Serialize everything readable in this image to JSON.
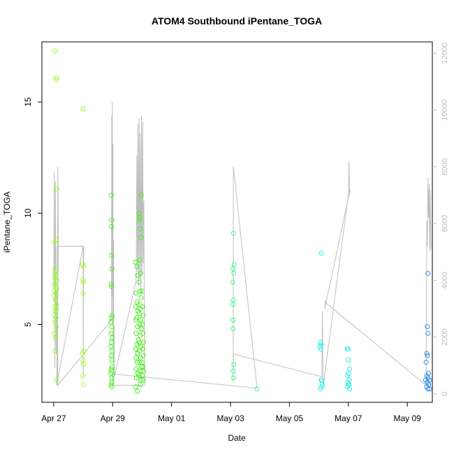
{
  "chart_data": {
    "type": "scatter",
    "title": "ATOM4 Southbound iPentane_TOGA",
    "xlabel": "Date",
    "ylabel": "iPentane_TOGA",
    "x_tick_labels": [
      "Apr 27",
      "Apr 29",
      "May 01",
      "May 03",
      "May 05",
      "May 07",
      "May 09"
    ],
    "x_ticks_day": [
      0,
      2,
      4,
      6,
      8,
      10,
      12
    ],
    "xlim_day": [
      -0.4,
      12.85
    ],
    "ylim": [
      1.5,
      17.7
    ],
    "y_ticks": [
      5,
      10,
      15
    ],
    "y_tick_labels": [
      "5",
      "10",
      "15"
    ],
    "y2lim": [
      -300,
      12400
    ],
    "y2_ticks": [
      0,
      2000,
      4000,
      6000,
      8000,
      10000,
      12000
    ],
    "y2_tick_labels": [
      "0",
      "2000",
      "4000",
      "6000",
      "8000",
      "10000",
      "12000"
    ],
    "colors": {
      "altitude_line": "#bebebe",
      "right_axis": "#bbbbbb",
      "frame": "#000000"
    },
    "series": [
      {
        "color": "#9bff2a",
        "points": [
          [
            0.04,
            17.3
          ],
          [
            0.1,
            16.1
          ],
          [
            0.08,
            16.0
          ],
          [
            0.1,
            11.1
          ],
          [
            0.08,
            8.8
          ],
          [
            0.02,
            8.7
          ],
          [
            0.05,
            7.5
          ],
          [
            0.03,
            7.3
          ],
          [
            0.08,
            7.2
          ],
          [
            0.04,
            7.1
          ],
          [
            0.1,
            7.0
          ],
          [
            0.02,
            6.8
          ],
          [
            0.06,
            6.7
          ],
          [
            0.1,
            6.6
          ],
          [
            0.04,
            6.5
          ],
          [
            0.08,
            6.4
          ],
          [
            0.0,
            6.3
          ],
          [
            0.06,
            6.1
          ],
          [
            0.1,
            5.9
          ],
          [
            0.03,
            5.8
          ],
          [
            0.09,
            5.7
          ],
          [
            0.05,
            5.6
          ],
          [
            0.02,
            5.4
          ],
          [
            0.08,
            5.3
          ],
          [
            0.04,
            5.1
          ],
          [
            0.1,
            4.9
          ],
          [
            0.02,
            4.6
          ],
          [
            0.06,
            4.4
          ],
          [
            0.03,
            3.8
          ],
          [
            0.1,
            2.5
          ],
          [
            1.0,
            14.7
          ],
          [
            0.98,
            7.7
          ],
          [
            1.02,
            7.6
          ],
          [
            0.99,
            7.0
          ],
          [
            1.01,
            6.9
          ],
          [
            1.0,
            6.4
          ],
          [
            1.02,
            3.8
          ],
          [
            0.98,
            3.7
          ],
          [
            1.0,
            3.4
          ],
          [
            1.02,
            3.2
          ],
          [
            1.0,
            2.7
          ],
          [
            1.01,
            2.3
          ]
        ]
      },
      {
        "color": "#48f01c",
        "points": [
          [
            1.96,
            10.8
          ],
          [
            1.97,
            9.7
          ],
          [
            1.96,
            9.4
          ],
          [
            1.97,
            8.1
          ],
          [
            1.98,
            7.5
          ],
          [
            1.95,
            6.8
          ],
          [
            1.97,
            6.7
          ],
          [
            1.98,
            5.4
          ],
          [
            1.96,
            5.3
          ],
          [
            1.94,
            5.1
          ],
          [
            1.97,
            4.9
          ],
          [
            1.95,
            4.6
          ],
          [
            1.98,
            4.4
          ],
          [
            1.96,
            4.2
          ],
          [
            1.94,
            4.0
          ],
          [
            1.97,
            3.8
          ],
          [
            1.95,
            3.6
          ],
          [
            1.96,
            3.4
          ],
          [
            1.98,
            3.1
          ],
          [
            1.95,
            3.0
          ],
          [
            1.97,
            2.9
          ],
          [
            1.94,
            2.8
          ],
          [
            1.96,
            2.6
          ],
          [
            1.98,
            2.4
          ],
          [
            1.95,
            2.3
          ],
          [
            1.97,
            2.2
          ],
          [
            2.78,
            7.8
          ],
          [
            2.82,
            7.6
          ],
          [
            2.85,
            7.2
          ],
          [
            2.8,
            6.4
          ],
          [
            2.83,
            6.0
          ],
          [
            2.78,
            5.8
          ],
          [
            2.86,
            5.6
          ],
          [
            2.82,
            5.3
          ],
          [
            2.79,
            5.2
          ],
          [
            2.84,
            4.9
          ],
          [
            2.8,
            4.6
          ],
          [
            2.87,
            4.3
          ],
          [
            2.82,
            4.1
          ],
          [
            2.78,
            3.9
          ],
          [
            2.85,
            3.7
          ],
          [
            2.8,
            3.5
          ],
          [
            2.83,
            3.3
          ],
          [
            2.79,
            3.0
          ],
          [
            2.86,
            2.8
          ],
          [
            2.81,
            2.6
          ],
          [
            2.78,
            2.2
          ],
          [
            2.84,
            2.0
          ],
          [
            2.9,
            10.0
          ],
          [
            2.93,
            9.8
          ],
          [
            2.92,
            9.7
          ],
          [
            2.94,
            9.3
          ],
          [
            2.96,
            8.9
          ],
          [
            2.92,
            7.9
          ],
          [
            2.95,
            7.3
          ],
          [
            2.9,
            6.9
          ],
          [
            2.93,
            6.5
          ],
          [
            2.96,
            6.2
          ],
          [
            2.91,
            5.9
          ],
          [
            2.94,
            5.7
          ],
          [
            2.9,
            5.5
          ],
          [
            2.95,
            5.2
          ],
          [
            2.92,
            5.0
          ],
          [
            2.97,
            4.8
          ],
          [
            2.93,
            4.5
          ],
          [
            2.9,
            4.2
          ],
          [
            2.96,
            4.0
          ],
          [
            2.92,
            3.8
          ],
          [
            2.95,
            3.5
          ],
          [
            2.91,
            3.3
          ],
          [
            2.97,
            3.1
          ],
          [
            2.93,
            2.9
          ],
          [
            2.9,
            2.7
          ],
          [
            2.96,
            2.5
          ],
          [
            2.94,
            2.3
          ],
          [
            2.97,
            10.8
          ],
          [
            3.0,
            6.5
          ],
          [
            3.02,
            5.8
          ],
          [
            3.04,
            5.4
          ],
          [
            3.01,
            5.0
          ],
          [
            3.03,
            4.6
          ],
          [
            3.05,
            4.2
          ],
          [
            3.02,
            3.9
          ],
          [
            3.04,
            3.6
          ],
          [
            3.0,
            3.3
          ],
          [
            3.03,
            3.1
          ],
          [
            3.05,
            2.9
          ],
          [
            3.01,
            2.7
          ],
          [
            3.04,
            2.5
          ]
        ]
      },
      {
        "color": "#3dfa8e",
        "points": [
          [
            6.1,
            9.1
          ],
          [
            6.12,
            7.7
          ],
          [
            6.09,
            7.5
          ],
          [
            6.11,
            7.3
          ],
          [
            6.07,
            6.9
          ],
          [
            6.1,
            6.1
          ],
          [
            6.08,
            5.9
          ],
          [
            6.09,
            5.2
          ],
          [
            6.08,
            4.8
          ],
          [
            6.11,
            3.2
          ],
          [
            6.1,
            2.9
          ],
          [
            6.1,
            2.6
          ],
          [
            6.9,
            2.1
          ]
        ]
      },
      {
        "color": "#2ef0e4",
        "points": [
          [
            9.08,
            8.2
          ],
          [
            9.05,
            4.2
          ],
          [
            9.08,
            4.1
          ],
          [
            9.04,
            4.0
          ],
          [
            9.06,
            3.9
          ],
          [
            9.1,
            2.5
          ],
          [
            9.08,
            2.5
          ],
          [
            9.12,
            2.3
          ],
          [
            9.09,
            2.2
          ],
          [
            9.06,
            2.1
          ],
          [
            9.96,
            3.9
          ],
          [
            9.99,
            3.9
          ],
          [
            10.0,
            3.4
          ],
          [
            10.04,
            3.0
          ],
          [
            10.01,
            2.8
          ],
          [
            9.97,
            2.7
          ],
          [
            10.03,
            2.5
          ],
          [
            9.98,
            2.4
          ],
          [
            10.02,
            2.3
          ],
          [
            10.0,
            2.3
          ],
          [
            9.96,
            2.2
          ],
          [
            10.04,
            2.1
          ]
        ]
      },
      {
        "color": "#2b8fe8",
        "points": [
          [
            12.7,
            7.3
          ],
          [
            12.68,
            4.9
          ],
          [
            12.7,
            4.6
          ],
          [
            12.66,
            3.7
          ],
          [
            12.68,
            3.6
          ],
          [
            12.64,
            3.3
          ],
          [
            12.72,
            2.8
          ],
          [
            12.66,
            2.7
          ],
          [
            12.7,
            2.6
          ],
          [
            12.75,
            2.5
          ],
          [
            12.62,
            2.5
          ],
          [
            12.68,
            2.4
          ],
          [
            12.73,
            2.3
          ],
          [
            12.65,
            2.2
          ],
          [
            12.7,
            2.1
          ],
          [
            12.76,
            2.1
          ]
        ]
      }
    ],
    "altitude_path": [
      [
        0.0,
        3800
      ],
      [
        0.02,
        7800
      ],
      [
        0.04,
        900
      ],
      [
        0.06,
        7500
      ],
      [
        0.08,
        1400
      ],
      [
        0.1,
        3600
      ],
      [
        0.12,
        400
      ],
      [
        0.14,
        8000
      ],
      [
        0.16,
        5200
      ],
      [
        0.1,
        300
      ],
      [
        1.0,
        5200
      ],
      [
        1.0,
        600
      ],
      [
        1.02,
        5200
      ],
      [
        0.12,
        5200
      ],
      [
        0.14,
        300
      ],
      [
        1.96,
        2600
      ],
      [
        1.97,
        9800
      ],
      [
        1.98,
        3400
      ],
      [
        1.99,
        10300
      ],
      [
        2.0,
        2600
      ],
      [
        2.01,
        8800
      ],
      [
        2.02,
        1800
      ],
      [
        2.03,
        5400
      ],
      [
        2.04,
        500
      ],
      [
        2.05,
        2400
      ],
      [
        2.06,
        600
      ],
      [
        2.8,
        4000
      ],
      [
        2.82,
        8400
      ],
      [
        2.84,
        4300
      ],
      [
        2.86,
        9500
      ],
      [
        2.88,
        3800
      ],
      [
        2.9,
        9700
      ],
      [
        2.92,
        4000
      ],
      [
        2.94,
        9200
      ],
      [
        2.96,
        3500
      ],
      [
        2.98,
        9800
      ],
      [
        3.0,
        4200
      ],
      [
        3.02,
        9600
      ],
      [
        3.04,
        4600
      ],
      [
        3.06,
        6800
      ],
      [
        3.08,
        300
      ],
      [
        2.1,
        300
      ],
      [
        2.0,
        300
      ],
      [
        2.0,
        700
      ],
      [
        6.9,
        200
      ],
      [
        6.1,
        8000
      ],
      [
        6.09,
        400
      ],
      [
        6.1,
        1400
      ],
      [
        9.1,
        600
      ],
      [
        9.12,
        2900
      ],
      [
        9.14,
        300
      ],
      [
        9.16,
        400
      ],
      [
        10.0,
        7000
      ],
      [
        10.02,
        8200
      ],
      [
        10.04,
        7000
      ],
      [
        10.06,
        7200
      ],
      [
        9.2,
        3000
      ],
      [
        9.22,
        3300
      ],
      [
        9.24,
        3200
      ],
      [
        12.64,
        300
      ],
      [
        12.66,
        6100
      ],
      [
        12.68,
        5200
      ],
      [
        12.7,
        7600
      ],
      [
        12.72,
        6200
      ],
      [
        12.74,
        7400
      ],
      [
        12.76,
        5000
      ],
      [
        12.78,
        7200
      ],
      [
        12.8,
        5100
      ]
    ]
  }
}
